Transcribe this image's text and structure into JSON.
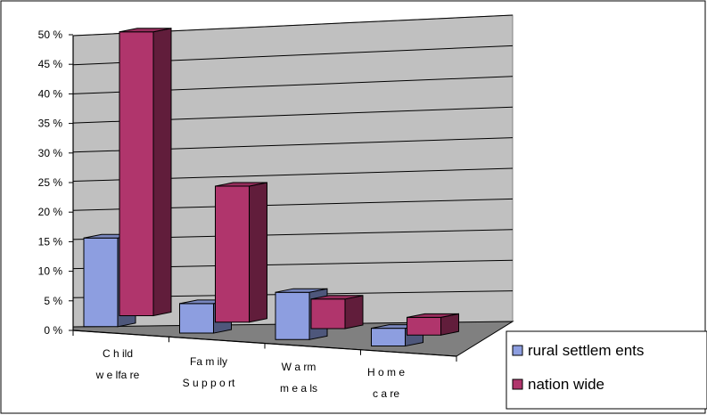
{
  "chart_data": {
    "type": "bar",
    "title": "",
    "xlabel": "",
    "ylabel": "",
    "ylim": [
      0,
      50
    ],
    "y_tick_labels": [
      "0 %",
      "5 %",
      "10 %",
      "15 %",
      "20 %",
      "25 %",
      "30 %",
      "35 %",
      "40 %",
      "45 %",
      "50 %"
    ],
    "y_tick_values": [
      0,
      5,
      10,
      15,
      20,
      25,
      30,
      35,
      40,
      45,
      50
    ],
    "categories": [
      [
        "C h ild",
        "w e lfa re"
      ],
      [
        "Fa m ily",
        "S u p p o rt"
      ],
      [
        "W a rm",
        "m e a ls"
      ],
      [
        "H o m e",
        "c a re"
      ]
    ],
    "series": [
      {
        "name": "rural settlements",
        "label": "rural settlem ents",
        "color": "#8d9ee0",
        "values": [
          15,
          5,
          8,
          3
        ]
      },
      {
        "name": "nation wide",
        "label": "nation wide",
        "color": "#b0356c",
        "values": [
          48,
          23,
          5,
          3
        ]
      }
    ],
    "grid": true,
    "legend_position": "bottom-right",
    "style": "3d-clustered-column"
  }
}
